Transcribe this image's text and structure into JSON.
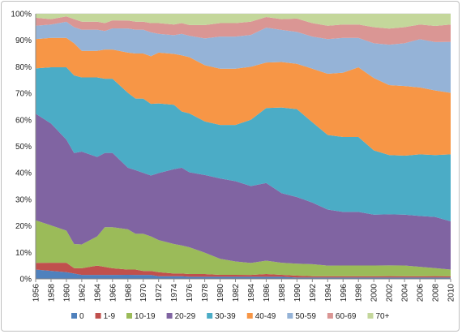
{
  "chart_data": {
    "type": "area",
    "stacked": true,
    "normalized": true,
    "x": [
      1956,
      1958,
      1960,
      1961,
      1962,
      1964,
      1965,
      1966,
      1968,
      1969,
      1970,
      1971,
      1972,
      1974,
      1975,
      1976,
      1978,
      1980,
      1982,
      1984,
      1986,
      1988,
      1990,
      1992,
      1994,
      1996,
      1998,
      2000,
      2002,
      2004,
      2006,
      2008,
      2010
    ],
    "x_tick_labels": [
      "1956",
      "1958",
      "1960",
      "1962",
      "1964",
      "1966",
      "1968",
      "1970",
      "1972",
      "1974",
      "1976",
      "1978",
      "1980",
      "1982",
      "1984",
      "1986",
      "1988",
      "1990",
      "1992",
      "1994",
      "1996",
      "1998",
      "2000",
      "2002",
      "2004",
      "2006",
      "2008",
      "2010"
    ],
    "y_tick_labels": [
      "0%",
      "10%",
      "20%",
      "30%",
      "40%",
      "50%",
      "60%",
      "70%",
      "80%",
      "90%",
      "100%"
    ],
    "ylim": [
      0,
      100
    ],
    "grid": true,
    "legend_position": "bottom",
    "series": [
      {
        "name": "0",
        "color": "#4F81BD",
        "values": [
          3.5,
          3,
          2.5,
          2,
          1.5,
          1.5,
          1.5,
          1.5,
          1.5,
          1.5,
          1.5,
          1.5,
          1,
          1,
          1,
          0.8,
          0.8,
          0.8,
          0.8,
          0.8,
          0.8,
          0.8,
          0.5,
          0.5,
          0.5,
          0.5,
          0.5,
          0.5,
          0.5,
          0.5,
          0.5,
          0.5,
          0.5
        ]
      },
      {
        "name": "1-9",
        "color": "#C0504D",
        "values": [
          2.5,
          3,
          3.5,
          2,
          2.5,
          3.5,
          3,
          2.5,
          2,
          2,
          1.5,
          1.5,
          1.5,
          1,
          1,
          1,
          1,
          0.7,
          0.7,
          0.7,
          1,
          0.7,
          0.7,
          0.5,
          0.5,
          0.5,
          0.5,
          0.5,
          0.5,
          0.5,
          0.5,
          0.5,
          0.5
        ]
      },
      {
        "name": "10-19",
        "color": "#9BBB59",
        "values": [
          16,
          14,
          12,
          9,
          9,
          11,
          15,
          15.5,
          15,
          13.5,
          14,
          13,
          12,
          11,
          10.5,
          10,
          8,
          6,
          5,
          4.5,
          5,
          4.5,
          4.5,
          4.5,
          4,
          4,
          4,
          4,
          4,
          4,
          3.5,
          3,
          2.5
        ]
      },
      {
        "name": "20-29",
        "color": "#8064A2",
        "values": [
          40,
          38,
          34,
          34,
          35,
          30,
          28,
          28,
          23,
          24,
          23,
          23,
          25,
          28,
          29,
          28,
          29,
          30,
          30,
          29,
          29,
          26,
          25,
          23,
          21,
          20,
          20,
          19,
          19,
          19,
          19,
          19,
          18
        ]
      },
      {
        "name": "30-39",
        "color": "#4BACC6",
        "values": [
          17,
          21,
          27,
          29,
          28,
          30,
          28,
          28,
          28,
          27,
          28,
          27,
          26,
          24,
          21,
          22,
          20,
          20,
          21,
          25,
          28,
          32,
          33,
          30,
          28,
          28,
          28,
          24,
          22,
          22,
          23,
          23,
          25
        ]
      },
      {
        "name": "40-49",
        "color": "#F79646",
        "values": [
          11,
          11,
          11,
          12,
          10,
          10,
          11,
          11,
          15,
          17,
          17,
          18,
          19,
          19,
          21,
          21,
          21,
          21,
          21,
          20,
          17,
          17,
          17,
          20,
          23,
          24,
          26,
          27,
          26,
          26,
          25,
          24,
          23
        ]
      },
      {
        "name": "50-59",
        "color": "#95B3D7",
        "values": [
          5,
          5,
          6,
          6,
          8,
          8,
          7,
          8,
          9,
          9,
          9,
          9,
          7,
          7,
          8,
          8,
          10,
          12,
          12,
          12,
          13,
          12,
          12,
          12,
          13,
          13,
          11,
          13,
          15,
          16,
          18,
          18,
          19
        ]
      },
      {
        "name": "60-69",
        "color": "#DA9694",
        "values": [
          3,
          2,
          2,
          3,
          3,
          3,
          3,
          3,
          3,
          3,
          3,
          3.5,
          4,
          4,
          4,
          4,
          5,
          5,
          5,
          5,
          4,
          4,
          5,
          5,
          5,
          5,
          5,
          6,
          6,
          6,
          5.5,
          6,
          6.5
        ]
      },
      {
        "name": "70+",
        "color": "#C4D79B",
        "values": [
          1.5,
          2,
          1,
          2,
          3,
          3,
          3.5,
          2.5,
          2.5,
          3,
          3,
          3.5,
          3.5,
          4,
          3.5,
          4.2,
          4.2,
          3.5,
          3.5,
          3,
          1.2,
          2,
          1.8,
          3.5,
          4.5,
          4,
          4,
          5,
          5.5,
          5,
          4,
          4.5,
          4
        ]
      }
    ]
  }
}
